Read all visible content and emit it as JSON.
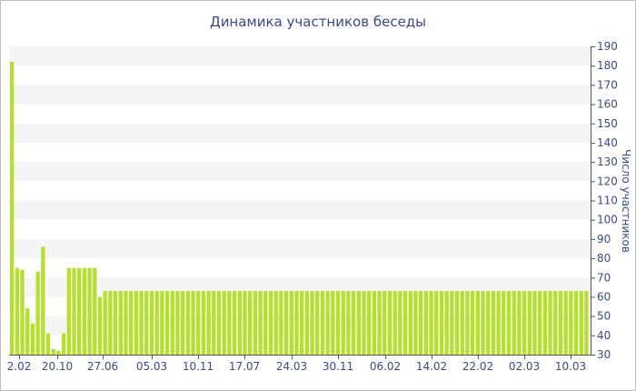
{
  "chart_data": {
    "type": "bar",
    "title": "Динамика участников беседы",
    "ylabel": "Число участников",
    "xlabel": "",
    "ylim": [
      30,
      190
    ],
    "yticks": [
      30,
      40,
      50,
      60,
      70,
      80,
      90,
      100,
      110,
      120,
      130,
      140,
      150,
      160,
      170,
      180,
      190
    ],
    "x_tick_labels": [
      "2.02",
      "20.10",
      "27.06",
      "05.03",
      "10.11",
      "17.07",
      "24.03",
      "30.11",
      "06.02",
      "14.02",
      "22.02",
      "02.03",
      "10.03"
    ],
    "y_axis_position": "right",
    "grid": "alternating horizontal bands",
    "colors": {
      "bar": "#b5e02c",
      "band": "#f5f5f5",
      "text": "#3a4a8c",
      "axis": "#555555"
    },
    "values": [
      182,
      75,
      74,
      54,
      46,
      73,
      86,
      41,
      33,
      32,
      41,
      75,
      75,
      75,
      75,
      75,
      75,
      60,
      63,
      63,
      63,
      63,
      63,
      63,
      63,
      63,
      63,
      63,
      63,
      63,
      63,
      63,
      63,
      63,
      63,
      63,
      63,
      63,
      63,
      63,
      63,
      63,
      63,
      63,
      63,
      63,
      63,
      63,
      63,
      63,
      63,
      63,
      63,
      63,
      63,
      63,
      63,
      63,
      63,
      63,
      63,
      63,
      63,
      63,
      63,
      63,
      63,
      63,
      63,
      63,
      63,
      63,
      63,
      63,
      63,
      63,
      63,
      63,
      63,
      63,
      63,
      63,
      63,
      63,
      63,
      63,
      63,
      63,
      63,
      63,
      63,
      63,
      63,
      63,
      63,
      63,
      63,
      63,
      63,
      63,
      63,
      63,
      63,
      63,
      63,
      63,
      63,
      63,
      63,
      63,
      63,
      63
    ]
  }
}
